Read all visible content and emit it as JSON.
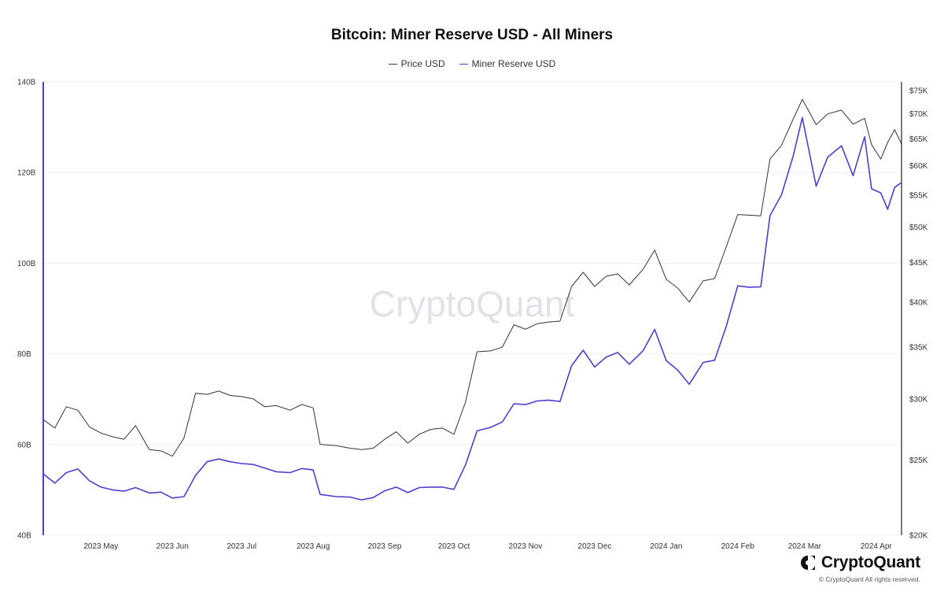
{
  "chart_data": {
    "type": "line",
    "title": "Bitcoin: Miner Reserve USD - All Miners",
    "xlabel": "",
    "legend": {
      "placement": "top-center",
      "entries": [
        "Price USD",
        "Miner Reserve USD"
      ]
    },
    "grid": true,
    "x_tick_labels": [
      "2023 May",
      "2023 Jun",
      "2023 Jul",
      "2023 Aug",
      "2023 Sep",
      "2023 Oct",
      "2023 Nov",
      "2023 Dec",
      "2024 Jan",
      "2024 Feb",
      "2024 Mar",
      "2024 Apr"
    ],
    "x_range": [
      "2023-04-20",
      "2024-04-26"
    ],
    "y_left": {
      "label": "",
      "scale": "linear",
      "range": [
        40,
        140
      ],
      "unit": "B",
      "tick_labels": [
        "40B",
        "60B",
        "80B",
        "100B",
        "120B",
        "140B"
      ]
    },
    "y_right": {
      "label": "",
      "scale": "log",
      "range": [
        20000,
        77000
      ],
      "tick_values": [
        20000,
        25000,
        30000,
        35000,
        40000,
        45000,
        50000,
        55000,
        60000,
        65000,
        70000,
        75000
      ],
      "tick_labels": [
        "$20K",
        "$25K",
        "$30K",
        "$35K",
        "$40K",
        "$45K",
        "$50K",
        "$55K",
        "$60K",
        "$65K",
        "$70K",
        "$75K"
      ]
    },
    "x": [
      "2023-04-20",
      "2023-04-25",
      "2023-04-30",
      "2023-05-05",
      "2023-05-10",
      "2023-05-15",
      "2023-05-20",
      "2023-05-25",
      "2023-05-30",
      "2023-06-05",
      "2023-06-10",
      "2023-06-15",
      "2023-06-20",
      "2023-06-25",
      "2023-06-30",
      "2023-07-05",
      "2023-07-10",
      "2023-07-15",
      "2023-07-20",
      "2023-07-25",
      "2023-07-30",
      "2023-08-05",
      "2023-08-10",
      "2023-08-15",
      "2023-08-18",
      "2023-08-25",
      "2023-08-31",
      "2023-09-05",
      "2023-09-10",
      "2023-09-15",
      "2023-09-20",
      "2023-09-25",
      "2023-09-30",
      "2023-10-05",
      "2023-10-10",
      "2023-10-15",
      "2023-10-20",
      "2023-10-25",
      "2023-10-31",
      "2023-11-05",
      "2023-11-10",
      "2023-11-15",
      "2023-11-20",
      "2023-11-25",
      "2023-11-30",
      "2023-12-05",
      "2023-12-10",
      "2023-12-15",
      "2023-12-20",
      "2023-12-25",
      "2023-12-30",
      "2024-01-05",
      "2024-01-10",
      "2024-01-15",
      "2024-01-20",
      "2024-01-25",
      "2024-01-31",
      "2024-02-05",
      "2024-02-10",
      "2024-02-15",
      "2024-02-20",
      "2024-02-25",
      "2024-02-29",
      "2024-03-05",
      "2024-03-10",
      "2024-03-14",
      "2024-03-20",
      "2024-03-25",
      "2024-03-31",
      "2024-04-05",
      "2024-04-10",
      "2024-04-13",
      "2024-04-17",
      "2024-04-20",
      "2024-04-23",
      "2024-04-26"
    ],
    "series": [
      {
        "name": "Price USD",
        "axis": "right",
        "color": "#333333",
        "values": [
          28200,
          27500,
          29300,
          29000,
          27600,
          27100,
          26800,
          26600,
          27700,
          25800,
          25700,
          25300,
          26700,
          30500,
          30400,
          30700,
          30300,
          30200,
          30000,
          29300,
          29400,
          29000,
          29500,
          29200,
          26200,
          26100,
          25900,
          25800,
          25900,
          26600,
          27200,
          26300,
          27000,
          27400,
          27500,
          27000,
          29700,
          34500,
          34600,
          35000,
          37400,
          36900,
          37500,
          37700,
          37800,
          41900,
          43700,
          41900,
          43200,
          43500,
          42100,
          44100,
          46700,
          42800,
          41700,
          40000,
          42600,
          42900,
          47100,
          51900,
          51800,
          51700,
          61200,
          63800,
          68900,
          73100,
          67800,
          70000,
          70800,
          67900,
          69100,
          63900,
          61200,
          64300,
          66800,
          64000
        ]
      },
      {
        "name": "Miner Reserve USD",
        "axis": "left",
        "color": "#4b3fd1",
        "values": [
          53.5,
          51.5,
          53.8,
          54.6,
          52.0,
          50.6,
          50.0,
          49.7,
          50.5,
          49.3,
          49.5,
          48.2,
          48.5,
          53.2,
          56.2,
          56.8,
          56.2,
          55.8,
          55.6,
          54.8,
          54.0,
          53.8,
          54.7,
          54.4,
          49.0,
          48.5,
          48.4,
          47.8,
          48.3,
          49.8,
          50.6,
          49.4,
          50.5,
          50.6,
          50.6,
          50.1,
          55.5,
          63.0,
          63.8,
          65.0,
          69.0,
          68.8,
          69.6,
          69.8,
          69.5,
          77.4,
          80.8,
          77.1,
          79.3,
          80.3,
          77.7,
          80.7,
          85.4,
          78.5,
          76.4,
          73.3,
          78.1,
          78.6,
          86.0,
          95.0,
          94.7,
          94.8,
          110.5,
          115.1,
          123.6,
          132.1,
          117.0,
          123.4,
          125.9,
          119.3,
          127.9,
          116.4,
          115.5,
          111.9,
          116.7,
          117.8
        ]
      }
    ]
  },
  "watermark": "CryptoQuant",
  "brand": {
    "name": "CryptoQuant",
    "copyright": "© CryptoQuant All rights reserved."
  }
}
